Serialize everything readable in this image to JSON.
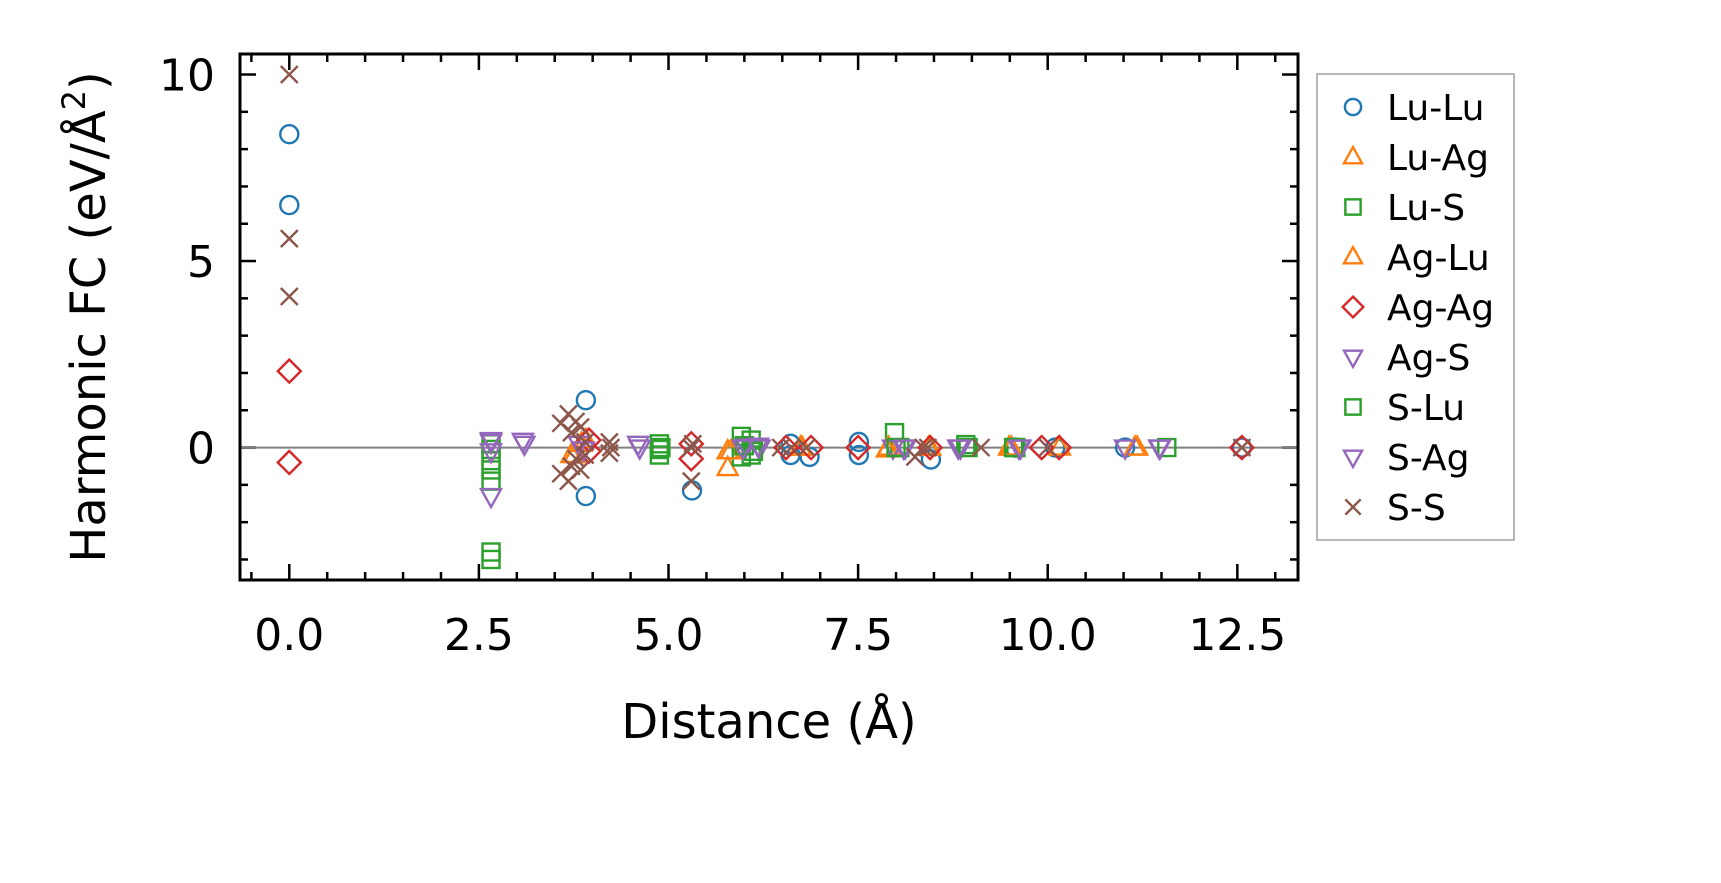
{
  "chart_data": {
    "type": "scatter",
    "title": "",
    "xlabel": "Distance (Å)",
    "ylabel_main": "Harmonic FC (eV/Å",
    "ylabel_sup": "2",
    "ylabel_end": ")",
    "xlim": [
      -0.65,
      13.3
    ],
    "ylim": [
      -3.55,
      10.55
    ],
    "xticks": [
      0.0,
      2.5,
      5.0,
      7.5,
      10.0,
      12.5
    ],
    "xtick_labels": [
      "0.0",
      "2.5",
      "5.0",
      "7.5",
      "10.0",
      "12.5"
    ],
    "yticks": [
      0,
      5,
      10
    ],
    "ytick_labels": [
      "0",
      "5",
      "10"
    ],
    "zero_line": true,
    "grid": false,
    "legend_position": "right-outside",
    "series": [
      {
        "name": "Lu-Lu",
        "marker": "circle",
        "color": "#1f77b4",
        "points": [
          [
            0,
            8.4
          ],
          [
            0,
            6.5
          ],
          [
            3.91,
            1.27
          ],
          [
            3.91,
            -1.3
          ],
          [
            5.31,
            -1.15
          ],
          [
            6.61,
            -0.2
          ],
          [
            6.61,
            0.1
          ],
          [
            6.86,
            -0.25
          ],
          [
            7.51,
            0.15
          ],
          [
            7.51,
            -0.2
          ],
          [
            8.46,
            -0.32
          ],
          [
            9.57,
            0.0
          ],
          [
            10.1,
            0.0
          ],
          [
            11.02,
            0.0
          ],
          [
            12.56,
            0.0
          ]
        ]
      },
      {
        "name": "Lu-Ag",
        "marker": "triangle-up",
        "color": "#ff7f0e",
        "points": [
          [
            3.76,
            -0.2
          ],
          [
            3.91,
            0.2
          ],
          [
            5.78,
            -0.55
          ],
          [
            5.78,
            -0.1
          ],
          [
            6.76,
            0.0
          ],
          [
            7.9,
            0.0
          ],
          [
            8.45,
            0.0
          ],
          [
            9.49,
            0.0
          ],
          [
            10.16,
            0.0
          ],
          [
            11.18,
            0.0
          ]
        ]
      },
      {
        "name": "Lu-S",
        "marker": "square",
        "color": "#2ca02c",
        "points": [
          [
            2.66,
            -2.8
          ],
          [
            2.66,
            -3.0
          ],
          [
            2.66,
            -0.9
          ],
          [
            2.66,
            -0.35
          ],
          [
            2.66,
            0.1
          ],
          [
            4.88,
            0.1
          ],
          [
            4.88,
            -0.2
          ],
          [
            4.88,
            -0.05
          ],
          [
            5.96,
            0.3
          ],
          [
            5.96,
            -0.25
          ],
          [
            6.09,
            0.2
          ],
          [
            6.09,
            -0.2
          ],
          [
            7.98,
            0.4
          ],
          [
            8.05,
            0.0
          ],
          [
            8.92,
            0.08
          ],
          [
            9.58,
            0.0
          ],
          [
            11.57,
            0.0
          ]
        ]
      },
      {
        "name": "Ag-Lu",
        "marker": "triangle-up",
        "color": "#ff7f0e",
        "points": [
          [
            3.72,
            -0.2
          ],
          [
            3.85,
            0.1
          ],
          [
            5.82,
            -0.1
          ],
          [
            6.74,
            0.0
          ],
          [
            7.88,
            -0.05
          ],
          [
            8.43,
            0.0
          ],
          [
            9.52,
            0.0
          ],
          [
            11.15,
            0.0
          ]
        ]
      },
      {
        "name": "Ag-Ag",
        "marker": "diamond",
        "color": "#d62728",
        "points": [
          [
            0,
            2.05
          ],
          [
            0,
            -0.4
          ],
          [
            3.95,
            -0.1
          ],
          [
            3.95,
            0.2
          ],
          [
            5.3,
            0.1
          ],
          [
            5.3,
            -0.3
          ],
          [
            6.55,
            0.0
          ],
          [
            6.88,
            0.0
          ],
          [
            7.5,
            0.0
          ],
          [
            8.45,
            0.0
          ],
          [
            9.92,
            0.0
          ],
          [
            10.15,
            0.0
          ],
          [
            12.56,
            0.0
          ]
        ]
      },
      {
        "name": "Ag-S",
        "marker": "triangle-down",
        "color": "#9467bd",
        "points": [
          [
            2.66,
            -1.3
          ],
          [
            2.66,
            0.15
          ],
          [
            3.08,
            0.18
          ],
          [
            3.82,
            0.1
          ],
          [
            4.6,
            0.1
          ],
          [
            6.02,
            0.05
          ],
          [
            6.2,
            0.0
          ],
          [
            7.96,
            0.0
          ],
          [
            8.1,
            0.0
          ],
          [
            8.85,
            0.0
          ],
          [
            9.62,
            0.0
          ],
          [
            11.02,
            0.0
          ],
          [
            11.48,
            0.0
          ]
        ]
      },
      {
        "name": "S-Lu",
        "marker": "square",
        "color": "#2ca02c",
        "points": [
          [
            2.66,
            -0.6
          ],
          [
            2.66,
            -0.05
          ],
          [
            4.9,
            0.0
          ],
          [
            6.0,
            0.05
          ],
          [
            6.12,
            -0.1
          ],
          [
            8.0,
            0.0
          ],
          [
            8.95,
            0.0
          ],
          [
            9.55,
            0.0
          ]
        ]
      },
      {
        "name": "S-Ag",
        "marker": "triangle-down",
        "color": "#9467bd",
        "points": [
          [
            2.66,
            0.2
          ],
          [
            2.66,
            -0.1
          ],
          [
            3.1,
            0.1
          ],
          [
            3.88,
            -0.05
          ],
          [
            4.62,
            0.0
          ],
          [
            5.98,
            0.0
          ],
          [
            6.18,
            0.05
          ],
          [
            8.12,
            0.0
          ],
          [
            8.82,
            0.0
          ],
          [
            9.64,
            0.0
          ],
          [
            11.47,
            0.0
          ]
        ]
      },
      {
        "name": "S-S",
        "marker": "x",
        "color": "#8c564b",
        "points": [
          [
            0,
            10.0
          ],
          [
            0,
            5.6
          ],
          [
            0,
            4.05
          ],
          [
            3.58,
            0.65
          ],
          [
            3.58,
            -0.7
          ],
          [
            3.68,
            0.9
          ],
          [
            3.68,
            -0.9
          ],
          [
            3.72,
            0.4
          ],
          [
            3.72,
            -0.5
          ],
          [
            3.78,
            0.7
          ],
          [
            3.78,
            -0.3
          ],
          [
            3.84,
            0.55
          ],
          [
            3.84,
            -0.6
          ],
          [
            3.9,
            0.15
          ],
          [
            3.9,
            -0.2
          ],
          [
            4.22,
            0.15
          ],
          [
            4.22,
            -0.15
          ],
          [
            4.24,
            0.0
          ],
          [
            5.3,
            0.0
          ],
          [
            5.3,
            -0.9
          ],
          [
            5.32,
            0.1
          ],
          [
            6.48,
            0.0
          ],
          [
            6.62,
            0.0
          ],
          [
            6.82,
            0.0
          ],
          [
            8.25,
            -0.25
          ],
          [
            8.36,
            0.0
          ],
          [
            8.42,
            0.0
          ],
          [
            9.12,
            0.0
          ],
          [
            10.0,
            0.0
          ],
          [
            12.56,
            0.0
          ]
        ]
      }
    ]
  }
}
